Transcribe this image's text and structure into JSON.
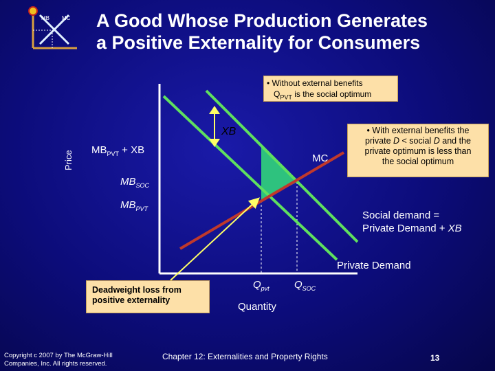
{
  "title_line1": "A Good Whose Production Generates",
  "title_line2": "a Positive Externality for Consumers",
  "logo": {
    "mb": "MB",
    "mc": "MC"
  },
  "callout_top": {
    "bullet": "•",
    "line1": "Without external benefits",
    "q_base": "Q",
    "q_sub": "PVT",
    "line2_rest": " is the social optimum"
  },
  "callout_right": {
    "bullet": "•",
    "line1": "With external benefits the",
    "line2a": "private ",
    "d1": "D",
    "line2b": " < social ",
    "d2": "D",
    "line2c": " and the",
    "line3": "private optimum is less than",
    "line4": "the social optimum"
  },
  "callout_dwl": {
    "line1": "Deadweight loss from",
    "line2": "positive externality"
  },
  "labels": {
    "xb": "XB",
    "mbpvt_xb_base": "MB",
    "mbpvt_xb_sub": "PVT",
    "mbpvt_xb_rest": " + XB",
    "price": "Price",
    "mc": "MC",
    "mbsoc_base": "MB",
    "mbsoc_sub": "SOC",
    "mbpvt_base": "MB",
    "mbpvt_sub": "PVT",
    "social_demand_1": "Social demand =",
    "social_demand_2a": "Private Demand + ",
    "social_demand_2b": "XB",
    "private_demand": "Private Demand",
    "qpvt_base": "Q",
    "qpvt_sub": "pvt",
    "qsoc_base": "Q",
    "qsoc_sub": "SOC",
    "quantity": "Quantity"
  },
  "footer": {
    "copyright1": "Copyright c 2007 by The McGraw-Hill",
    "copyright2": "Companies, Inc. All rights reserved.",
    "chapter": "Chapter 12: Externalities and Property Rights",
    "page": "13"
  },
  "colors": {
    "supply": "#c0392b",
    "demand": "#5fe05f",
    "dwl": "#2ec27e",
    "arrow": "#ffff66",
    "callout": "#fde0a8"
  }
}
